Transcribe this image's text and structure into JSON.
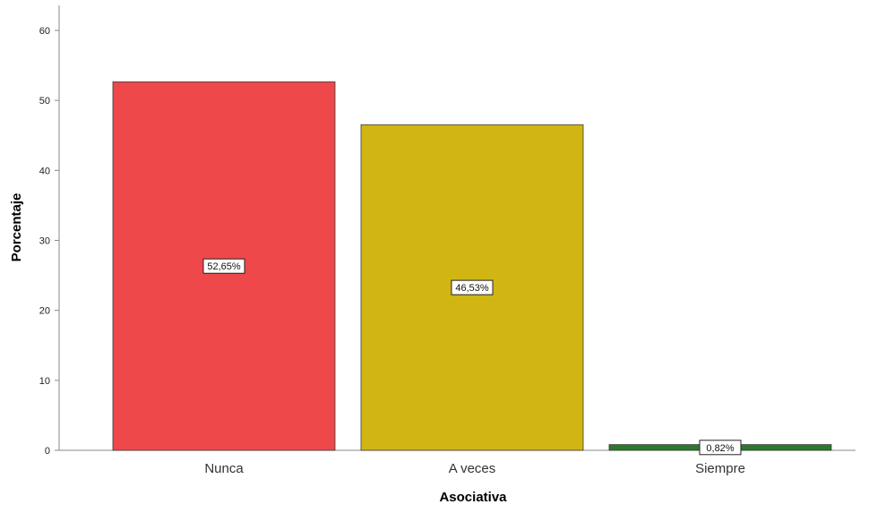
{
  "chart_data": {
    "type": "bar",
    "title": "",
    "xlabel": "Asociativa",
    "ylabel": "Porcentaje",
    "categories": [
      "Nunca",
      "A veces",
      "Siempre"
    ],
    "values": [
      52.65,
      46.53,
      0.82
    ],
    "data_labels": [
      "52,65%",
      "46,53%",
      "0,82%"
    ],
    "colors": [
      "#ee484b",
      "#d1b512",
      "#2a7a2a"
    ],
    "ylim": [
      0,
      60
    ],
    "yticks": [
      0,
      10,
      20,
      30,
      40,
      50,
      60
    ],
    "grid": false,
    "legend": "none"
  }
}
